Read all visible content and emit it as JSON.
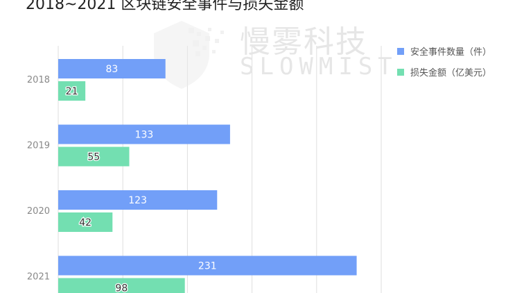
{
  "chart_data": {
    "type": "bar",
    "orientation": "horizontal",
    "title": "2018~2021 区块链安全事件与损失金额",
    "categories": [
      "2018",
      "2019",
      "2020",
      "2021"
    ],
    "series": [
      {
        "name": "安全事件数量（件）",
        "values": [
          83,
          133,
          123,
          231
        ],
        "color": "#729ff8"
      },
      {
        "name": "损失金额（亿美元）",
        "values": [
          21,
          55,
          42,
          98
        ],
        "color": "#73dfb1"
      }
    ],
    "xlim": [
      0,
      250
    ],
    "x_gridlines": [
      0,
      50,
      100,
      150,
      200,
      250
    ],
    "grid": true,
    "data_labels": true,
    "legend_position": "right"
  },
  "watermark": {
    "cn": "慢雾科技",
    "en": "SLOWMIST"
  }
}
